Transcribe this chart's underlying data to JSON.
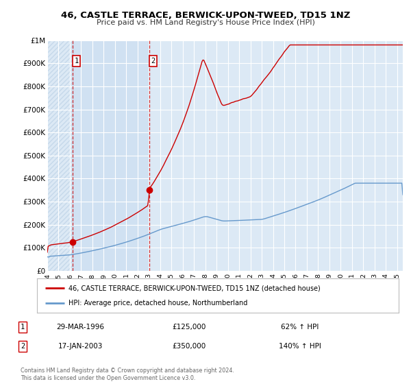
{
  "title": "46, CASTLE TERRACE, BERWICK-UPON-TWEED, TD15 1NZ",
  "subtitle": "Price paid vs. HM Land Registry's House Price Index (HPI)",
  "ylim": [
    0,
    1000000
  ],
  "xlim_start": 1994.0,
  "xlim_end": 2025.5,
  "bg_color": "#dce9f5",
  "bg_highlight_color": "#cde0f0",
  "plot_bg_color": "#ffffff",
  "red_line_color": "#cc0000",
  "blue_line_color": "#6699cc",
  "marker1_x": 1996.24,
  "marker1_y": 125000,
  "marker2_x": 2003.05,
  "marker2_y": 350000,
  "vline1_x": 1996.24,
  "vline2_x": 2003.05,
  "legend_label_red": "46, CASTLE TERRACE, BERWICK-UPON-TWEED, TD15 1NZ (detached house)",
  "legend_label_blue": "HPI: Average price, detached house, Northumberland",
  "annotation1_date": "29-MAR-1996",
  "annotation1_price": "£125,000",
  "annotation1_hpi": "62% ↑ HPI",
  "annotation2_date": "17-JAN-2003",
  "annotation2_price": "£350,000",
  "annotation2_hpi": "140% ↑ HPI",
  "footer": "Contains HM Land Registry data © Crown copyright and database right 2024.\nThis data is licensed under the Open Government Licence v3.0.",
  "yticks": [
    0,
    100000,
    200000,
    300000,
    400000,
    500000,
    600000,
    700000,
    800000,
    900000,
    1000000
  ],
  "ytick_labels": [
    "£0",
    "£100K",
    "£200K",
    "£300K",
    "£400K",
    "£500K",
    "£600K",
    "£700K",
    "£800K",
    "£900K",
    "£1M"
  ]
}
